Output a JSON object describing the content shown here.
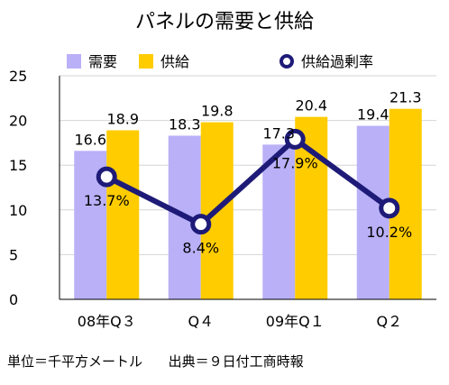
{
  "chart_data": {
    "type": "bar",
    "title": "パネルの需要と供給",
    "categories": [
      "08年Q３",
      "Q４",
      "09年Q１",
      "Q２"
    ],
    "series": [
      {
        "name": "需要",
        "kind": "bar",
        "color": "#b9b0f8",
        "values": [
          16.6,
          18.3,
          17.3,
          19.4
        ]
      },
      {
        "name": "供給",
        "kind": "bar",
        "color": "#ffcc00",
        "values": [
          18.9,
          19.8,
          20.4,
          21.3
        ]
      },
      {
        "name": "供給過剰率",
        "kind": "line",
        "color": "#1e1b78",
        "unit": "%",
        "values": [
          13.7,
          8.4,
          17.9,
          10.2
        ]
      }
    ],
    "ylim": [
      0,
      25
    ],
    "yticks": [
      0,
      5,
      10,
      15,
      20,
      25
    ],
    "grid": true,
    "legend": "top"
  },
  "footnote": {
    "unit": "単位＝千平方メートル",
    "source": "出典＝９日付工商時報"
  }
}
